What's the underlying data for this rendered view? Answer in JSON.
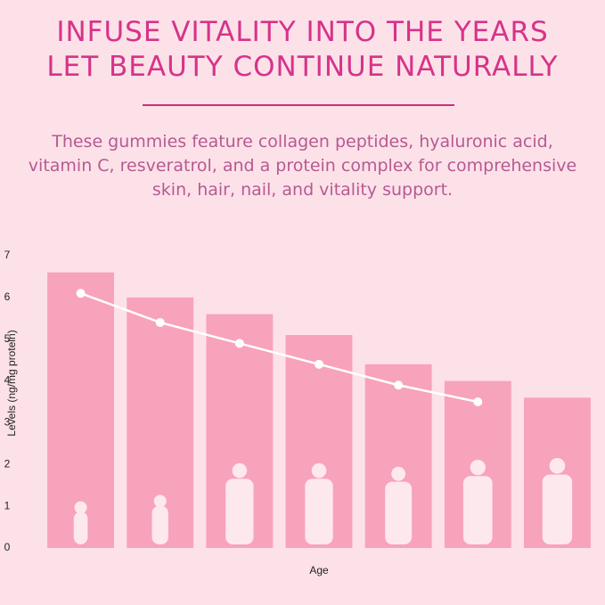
{
  "header": {
    "title_lines": [
      "INFUSE VITALITY INTO THE YEARS",
      "LET BEAUTY CONTINUE NATURALLY"
    ],
    "text_lines": [
      "These gummies feature collagen peptides, hyaluronic acid,",
      "vitamin C, resveratrol, and a protein complex for comprehensive",
      "skin, hair, nail, and vitality support."
    ]
  },
  "chart_data": {
    "type": "bar",
    "categories": [
      null,
      null,
      null,
      null,
      null,
      null,
      null
    ],
    "series": [
      {
        "type": "bar",
        "color": "#f7a3bb",
        "values": [
          6.6,
          6.0,
          5.6,
          5.1,
          4.4,
          4.0,
          3.6
        ]
      },
      {
        "type": "line",
        "color": "#ffffff",
        "values": [
          6.1,
          5.4,
          4.9,
          4.4,
          3.9,
          3.5,
          null
        ]
      }
    ],
    "ylim": [
      0,
      7
    ],
    "yticks": [
      0,
      1,
      2,
      3,
      4,
      5,
      6,
      7
    ],
    "ylabel": "Levels (ng/mg protein)",
    "xlabel": "Age"
  }
}
